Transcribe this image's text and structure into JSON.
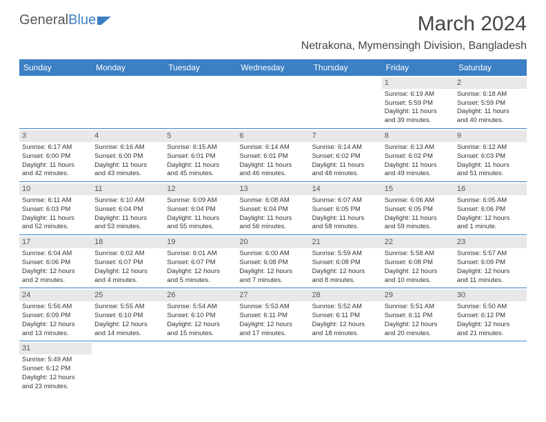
{
  "logo": {
    "text1": "General",
    "text2": "Blue"
  },
  "title": "March 2024",
  "location": "Netrakona, Mymensingh Division, Bangladesh",
  "colors": {
    "header_bg": "#3b7fc4",
    "daynum_bg": "#e8e8e8",
    "row_border": "#3b7fc4",
    "text": "#333333"
  },
  "day_headers": [
    "Sunday",
    "Monday",
    "Tuesday",
    "Wednesday",
    "Thursday",
    "Friday",
    "Saturday"
  ],
  "weeks": [
    [
      {
        "empty": true
      },
      {
        "empty": true
      },
      {
        "empty": true
      },
      {
        "empty": true
      },
      {
        "empty": true
      },
      {
        "num": "1",
        "sunrise": "Sunrise: 6:19 AM",
        "sunset": "Sunset: 5:59 PM",
        "day1": "Daylight: 11 hours",
        "day2": "and 39 minutes."
      },
      {
        "num": "2",
        "sunrise": "Sunrise: 6:18 AM",
        "sunset": "Sunset: 5:59 PM",
        "day1": "Daylight: 11 hours",
        "day2": "and 40 minutes."
      }
    ],
    [
      {
        "num": "3",
        "sunrise": "Sunrise: 6:17 AM",
        "sunset": "Sunset: 6:00 PM",
        "day1": "Daylight: 11 hours",
        "day2": "and 42 minutes."
      },
      {
        "num": "4",
        "sunrise": "Sunrise: 6:16 AM",
        "sunset": "Sunset: 6:00 PM",
        "day1": "Daylight: 11 hours",
        "day2": "and 43 minutes."
      },
      {
        "num": "5",
        "sunrise": "Sunrise: 6:15 AM",
        "sunset": "Sunset: 6:01 PM",
        "day1": "Daylight: 11 hours",
        "day2": "and 45 minutes."
      },
      {
        "num": "6",
        "sunrise": "Sunrise: 6:14 AM",
        "sunset": "Sunset: 6:01 PM",
        "day1": "Daylight: 11 hours",
        "day2": "and 46 minutes."
      },
      {
        "num": "7",
        "sunrise": "Sunrise: 6:14 AM",
        "sunset": "Sunset: 6:02 PM",
        "day1": "Daylight: 11 hours",
        "day2": "and 48 minutes."
      },
      {
        "num": "8",
        "sunrise": "Sunrise: 6:13 AM",
        "sunset": "Sunset: 6:02 PM",
        "day1": "Daylight: 11 hours",
        "day2": "and 49 minutes."
      },
      {
        "num": "9",
        "sunrise": "Sunrise: 6:12 AM",
        "sunset": "Sunset: 6:03 PM",
        "day1": "Daylight: 11 hours",
        "day2": "and 51 minutes."
      }
    ],
    [
      {
        "num": "10",
        "sunrise": "Sunrise: 6:11 AM",
        "sunset": "Sunset: 6:03 PM",
        "day1": "Daylight: 11 hours",
        "day2": "and 52 minutes."
      },
      {
        "num": "11",
        "sunrise": "Sunrise: 6:10 AM",
        "sunset": "Sunset: 6:04 PM",
        "day1": "Daylight: 11 hours",
        "day2": "and 53 minutes."
      },
      {
        "num": "12",
        "sunrise": "Sunrise: 6:09 AM",
        "sunset": "Sunset: 6:04 PM",
        "day1": "Daylight: 11 hours",
        "day2": "and 55 minutes."
      },
      {
        "num": "13",
        "sunrise": "Sunrise: 6:08 AM",
        "sunset": "Sunset: 6:04 PM",
        "day1": "Daylight: 11 hours",
        "day2": "and 56 minutes."
      },
      {
        "num": "14",
        "sunrise": "Sunrise: 6:07 AM",
        "sunset": "Sunset: 6:05 PM",
        "day1": "Daylight: 11 hours",
        "day2": "and 58 minutes."
      },
      {
        "num": "15",
        "sunrise": "Sunrise: 6:06 AM",
        "sunset": "Sunset: 6:05 PM",
        "day1": "Daylight: 11 hours",
        "day2": "and 59 minutes."
      },
      {
        "num": "16",
        "sunrise": "Sunrise: 6:05 AM",
        "sunset": "Sunset: 6:06 PM",
        "day1": "Daylight: 12 hours",
        "day2": "and 1 minute."
      }
    ],
    [
      {
        "num": "17",
        "sunrise": "Sunrise: 6:04 AM",
        "sunset": "Sunset: 6:06 PM",
        "day1": "Daylight: 12 hours",
        "day2": "and 2 minutes."
      },
      {
        "num": "18",
        "sunrise": "Sunrise: 6:02 AM",
        "sunset": "Sunset: 6:07 PM",
        "day1": "Daylight: 12 hours",
        "day2": "and 4 minutes."
      },
      {
        "num": "19",
        "sunrise": "Sunrise: 6:01 AM",
        "sunset": "Sunset: 6:07 PM",
        "day1": "Daylight: 12 hours",
        "day2": "and 5 minutes."
      },
      {
        "num": "20",
        "sunrise": "Sunrise: 6:00 AM",
        "sunset": "Sunset: 6:08 PM",
        "day1": "Daylight: 12 hours",
        "day2": "and 7 minutes."
      },
      {
        "num": "21",
        "sunrise": "Sunrise: 5:59 AM",
        "sunset": "Sunset: 6:08 PM",
        "day1": "Daylight: 12 hours",
        "day2": "and 8 minutes."
      },
      {
        "num": "22",
        "sunrise": "Sunrise: 5:58 AM",
        "sunset": "Sunset: 6:08 PM",
        "day1": "Daylight: 12 hours",
        "day2": "and 10 minutes."
      },
      {
        "num": "23",
        "sunrise": "Sunrise: 5:57 AM",
        "sunset": "Sunset: 6:09 PM",
        "day1": "Daylight: 12 hours",
        "day2": "and 11 minutes."
      }
    ],
    [
      {
        "num": "24",
        "sunrise": "Sunrise: 5:56 AM",
        "sunset": "Sunset: 6:09 PM",
        "day1": "Daylight: 12 hours",
        "day2": "and 13 minutes."
      },
      {
        "num": "25",
        "sunrise": "Sunrise: 5:55 AM",
        "sunset": "Sunset: 6:10 PM",
        "day1": "Daylight: 12 hours",
        "day2": "and 14 minutes."
      },
      {
        "num": "26",
        "sunrise": "Sunrise: 5:54 AM",
        "sunset": "Sunset: 6:10 PM",
        "day1": "Daylight: 12 hours",
        "day2": "and 15 minutes."
      },
      {
        "num": "27",
        "sunrise": "Sunrise: 5:53 AM",
        "sunset": "Sunset: 6:11 PM",
        "day1": "Daylight: 12 hours",
        "day2": "and 17 minutes."
      },
      {
        "num": "28",
        "sunrise": "Sunrise: 5:52 AM",
        "sunset": "Sunset: 6:11 PM",
        "day1": "Daylight: 12 hours",
        "day2": "and 18 minutes."
      },
      {
        "num": "29",
        "sunrise": "Sunrise: 5:51 AM",
        "sunset": "Sunset: 6:11 PM",
        "day1": "Daylight: 12 hours",
        "day2": "and 20 minutes."
      },
      {
        "num": "30",
        "sunrise": "Sunrise: 5:50 AM",
        "sunset": "Sunset: 6:12 PM",
        "day1": "Daylight: 12 hours",
        "day2": "and 21 minutes."
      }
    ],
    [
      {
        "num": "31",
        "sunrise": "Sunrise: 5:49 AM",
        "sunset": "Sunset: 6:12 PM",
        "day1": "Daylight: 12 hours",
        "day2": "and 23 minutes."
      },
      {
        "empty": true
      },
      {
        "empty": true
      },
      {
        "empty": true
      },
      {
        "empty": true
      },
      {
        "empty": true
      },
      {
        "empty": true
      }
    ]
  ]
}
